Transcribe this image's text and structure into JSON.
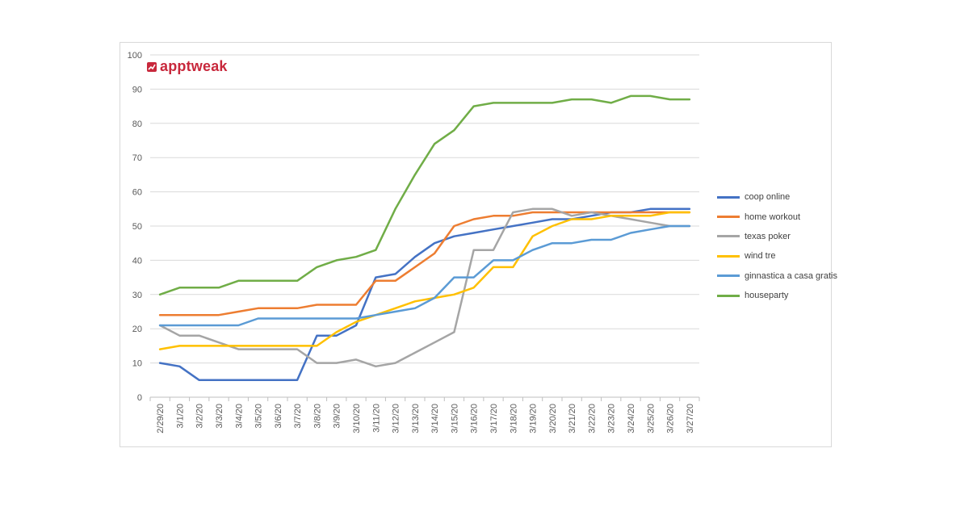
{
  "brand": {
    "name": "apptweak",
    "icon": "chart-logo-icon",
    "color": "#c8283c"
  },
  "chart_data": {
    "type": "line",
    "title": "",
    "xlabel": "",
    "ylabel": "",
    "ylim": [
      0,
      100
    ],
    "yticks": [
      "0",
      "10",
      "20",
      "30",
      "40",
      "50",
      "60",
      "70",
      "80",
      "90",
      "100"
    ],
    "grid": true,
    "legend_position": "right",
    "x": [
      "2/29/20",
      "3/1/20",
      "3/2/20",
      "3/3/20",
      "3/4/20",
      "3/5/20",
      "3/6/20",
      "3/7/20",
      "3/8/20",
      "3/9/20",
      "3/10/20",
      "3/11/20",
      "3/12/20",
      "3/13/20",
      "3/14/20",
      "3/15/20",
      "3/16/20",
      "3/17/20",
      "3/18/20",
      "3/19/20",
      "3/20/20",
      "3/21/20",
      "3/22/20",
      "3/23/20",
      "3/24/20",
      "3/25/20",
      "3/26/20",
      "3/27/20"
    ],
    "series": [
      {
        "name": "coop online",
        "color": "#4472c4",
        "values": [
          10,
          9,
          5,
          5,
          5,
          5,
          5,
          5,
          18,
          18,
          21,
          35,
          36,
          41,
          45,
          47,
          48,
          49,
          50,
          51,
          52,
          52,
          53,
          54,
          54,
          55,
          55,
          55
        ]
      },
      {
        "name": "home workout",
        "color": "#ed7d31",
        "values": [
          24,
          24,
          24,
          24,
          25,
          26,
          26,
          26,
          27,
          27,
          27,
          34,
          34,
          38,
          42,
          50,
          52,
          53,
          53,
          54,
          54,
          54,
          54,
          54,
          54,
          54,
          54,
          54
        ]
      },
      {
        "name": "texas poker",
        "color": "#a5a5a5",
        "values": [
          21,
          18,
          18,
          16,
          14,
          14,
          14,
          14,
          10,
          10,
          11,
          9,
          10,
          13,
          16,
          19,
          43,
          43,
          54,
          55,
          55,
          53,
          54,
          53,
          52,
          51,
          50,
          50
        ]
      },
      {
        "name": "wind tre",
        "color": "#ffc000",
        "values": [
          14,
          15,
          15,
          15,
          15,
          15,
          15,
          15,
          15,
          19,
          22,
          24,
          26,
          28,
          29,
          30,
          32,
          38,
          38,
          47,
          50,
          52,
          52,
          53,
          53,
          53,
          54,
          54
        ]
      },
      {
        "name": "ginnastica a casa gratis",
        "color": "#5b9bd5",
        "values": [
          21,
          21,
          21,
          21,
          21,
          23,
          23,
          23,
          23,
          23,
          23,
          24,
          25,
          26,
          29,
          35,
          35,
          40,
          40,
          43,
          45,
          45,
          46,
          46,
          48,
          49,
          50,
          50
        ]
      },
      {
        "name": "houseparty",
        "color": "#70ad47",
        "values": [
          30,
          32,
          32,
          32,
          34,
          34,
          34,
          34,
          38,
          40,
          41,
          43,
          55,
          65,
          74,
          78,
          85,
          86,
          86,
          86,
          86,
          87,
          87,
          86,
          88,
          88,
          87,
          87
        ]
      }
    ]
  }
}
